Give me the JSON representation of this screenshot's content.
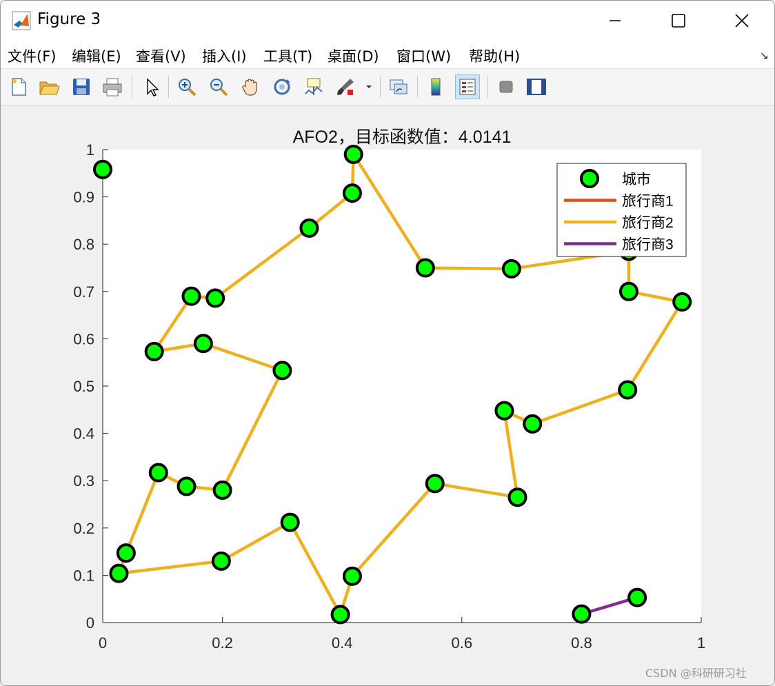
{
  "window": {
    "title": "Figure 3",
    "controls": {
      "minimize": "minimize",
      "maximize": "maximize",
      "close": "close"
    }
  },
  "menu": [
    {
      "label": "文件(F)"
    },
    {
      "label": "编辑(E)"
    },
    {
      "label": "查看(V)"
    },
    {
      "label": "插入(I)"
    },
    {
      "label": "工具(T)"
    },
    {
      "label": "桌面(D)"
    },
    {
      "label": "窗口(W)"
    },
    {
      "label": "帮助(H)"
    }
  ],
  "toolbar": {
    "buttons": [
      {
        "icon": "new-figure-icon"
      },
      {
        "icon": "open-folder-icon"
      },
      {
        "icon": "save-icon"
      },
      {
        "icon": "print-icon"
      },
      {
        "icon": "pointer-icon"
      },
      {
        "icon": "zoom-in-icon"
      },
      {
        "icon": "zoom-out-icon"
      },
      {
        "icon": "pan-hand-icon"
      },
      {
        "icon": "rotate-3d-icon"
      },
      {
        "icon": "data-cursor-icon"
      },
      {
        "icon": "brush-icon"
      },
      {
        "icon": "link-plot-icon"
      },
      {
        "icon": "colorbar-icon"
      },
      {
        "icon": "legend-icon",
        "active": true
      },
      {
        "icon": "hide-plot-tools-icon"
      },
      {
        "icon": "show-plot-tools-icon"
      }
    ]
  },
  "colors": {
    "city_fill": "#00ff00",
    "city_edge": "#000000",
    "salesman1": "#d95319",
    "salesman2": "#edb120",
    "salesman3": "#7e2f8e"
  },
  "chart_data": {
    "type": "line",
    "title": "AFO2，目标函数值：4.0141",
    "xlabel": "",
    "ylabel": "",
    "xlim": [
      0,
      1
    ],
    "ylim": [
      0,
      1
    ],
    "xticks": [
      "0",
      "0.2",
      "0.4",
      "0.6",
      "0.8",
      "1"
    ],
    "yticks": [
      "0",
      "0.1",
      "0.2",
      "0.3",
      "0.4",
      "0.5",
      "0.6",
      "0.7",
      "0.8",
      "0.9",
      "1"
    ],
    "grid": false,
    "legend_position": "top-right",
    "legend": [
      "城市",
      "旅行商1",
      "旅行商2",
      "旅行商3"
    ],
    "cities": [
      [
        0.0,
        0.958
      ],
      [
        0.419,
        0.99
      ],
      [
        0.417,
        0.908
      ],
      [
        0.345,
        0.834
      ],
      [
        0.539,
        0.75
      ],
      [
        0.683,
        0.748
      ],
      [
        0.879,
        0.785
      ],
      [
        0.879,
        0.7
      ],
      [
        0.968,
        0.678
      ],
      [
        0.877,
        0.492
      ],
      [
        0.718,
        0.42
      ],
      [
        0.671,
        0.448
      ],
      [
        0.693,
        0.265
      ],
      [
        0.555,
        0.294
      ],
      [
        0.417,
        0.098
      ],
      [
        0.397,
        0.017
      ],
      [
        0.313,
        0.212
      ],
      [
        0.198,
        0.13
      ],
      [
        0.027,
        0.104
      ],
      [
        0.039,
        0.147
      ],
      [
        0.093,
        0.317
      ],
      [
        0.14,
        0.288
      ],
      [
        0.2,
        0.28
      ],
      [
        0.3,
        0.533
      ],
      [
        0.168,
        0.59
      ],
      [
        0.086,
        0.573
      ],
      [
        0.148,
        0.69
      ],
      [
        0.188,
        0.686
      ],
      [
        0.8,
        0.018
      ],
      [
        0.893,
        0.053
      ]
    ],
    "series": [
      {
        "name": "旅行商1",
        "points": []
      },
      {
        "name": "旅行商2",
        "points": [
          [
            0.419,
            0.99
          ],
          [
            0.539,
            0.75
          ],
          [
            0.683,
            0.748
          ],
          [
            0.879,
            0.785
          ],
          [
            0.879,
            0.7
          ],
          [
            0.968,
            0.678
          ],
          [
            0.877,
            0.492
          ],
          [
            0.718,
            0.42
          ],
          [
            0.671,
            0.448
          ],
          [
            0.693,
            0.265
          ],
          [
            0.555,
            0.294
          ],
          [
            0.417,
            0.098
          ],
          [
            0.397,
            0.017
          ],
          [
            0.313,
            0.212
          ],
          [
            0.198,
            0.13
          ],
          [
            0.027,
            0.104
          ],
          [
            0.039,
            0.147
          ],
          [
            0.093,
            0.317
          ],
          [
            0.14,
            0.288
          ],
          [
            0.2,
            0.28
          ],
          [
            0.3,
            0.533
          ],
          [
            0.168,
            0.59
          ],
          [
            0.086,
            0.573
          ],
          [
            0.148,
            0.69
          ],
          [
            0.188,
            0.686
          ],
          [
            0.345,
            0.834
          ],
          [
            0.417,
            0.908
          ],
          [
            0.419,
            0.99
          ]
        ]
      },
      {
        "name": "旅行商3",
        "points": [
          [
            0.8,
            0.018
          ],
          [
            0.893,
            0.053
          ]
        ]
      }
    ]
  },
  "watermark": "CSDN @科研研习社"
}
